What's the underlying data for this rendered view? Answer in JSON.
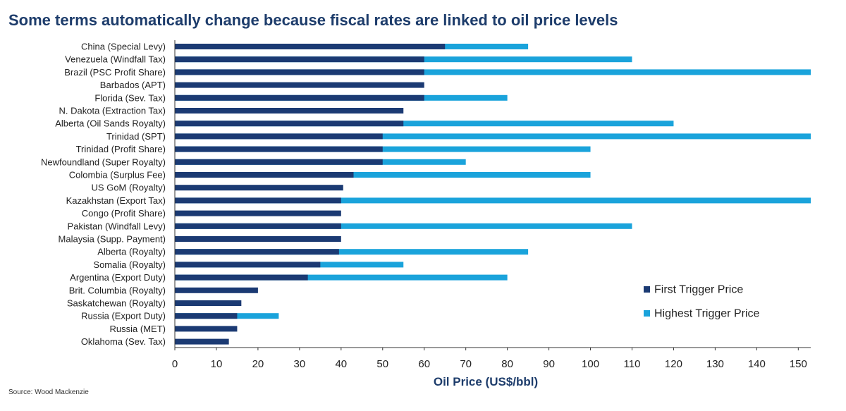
{
  "header": {
    "title": "Some terms automatically change because fiscal rates are linked to oil price levels"
  },
  "footer": {
    "source": "Source: Wood Mackenzie"
  },
  "colors": {
    "first": "#1b3a73",
    "highest": "#1aa3db",
    "axis": "#333333"
  },
  "chart_data": {
    "type": "bar",
    "orientation": "horizontal",
    "stacked": "overlay",
    "title": "",
    "xlabel": "Oil Price (US$/bbl)",
    "ylabel": "",
    "xlim": [
      0,
      153
    ],
    "xticks": [
      0,
      10,
      20,
      30,
      40,
      50,
      60,
      70,
      80,
      90,
      100,
      110,
      120,
      130,
      140,
      150
    ],
    "legend": {
      "position": "bottom-right"
    },
    "categories": [
      "China (Special Levy)",
      "Venezuela (Windfall Tax)",
      "Brazil (PSC Profit Share)",
      "Barbados (APT)",
      "Florida (Sev. Tax)",
      "N. Dakota (Extraction Tax)",
      "Alberta (Oil Sands Royalty)",
      "Trinidad (SPT)",
      "Trinidad (Profit Share)",
      "Newfoundland (Super Royalty)",
      "Colombia (Surplus Fee)",
      "US GoM (Royalty)",
      "Kazakhstan (Export Tax)",
      "Congo (Profit Share)",
      "Pakistan (Windfall Levy)",
      "Malaysia (Supp. Payment)",
      "Alberta (Royalty)",
      "Somalia (Royalty)",
      "Argentina (Export Duty)",
      "Brit. Columbia (Royalty)",
      "Saskatchewan (Royalty)",
      "Russia (Export Duty)",
      "Russia (MET)",
      "Oklahoma (Sev. Tax)"
    ],
    "series": [
      {
        "name": "First Trigger Price",
        "values": [
          65,
          60,
          60,
          60,
          60,
          55,
          55,
          50,
          50,
          50,
          43,
          40.5,
          40,
          40,
          40,
          40,
          39.5,
          35,
          32,
          20,
          16,
          15,
          15,
          13
        ]
      },
      {
        "name": "Highest Trigger Price",
        "values": [
          85,
          110,
          153,
          null,
          80,
          null,
          120,
          153,
          100,
          70,
          100,
          null,
          153,
          null,
          110,
          null,
          85,
          55,
          80,
          null,
          null,
          25,
          null,
          null
        ]
      }
    ]
  }
}
